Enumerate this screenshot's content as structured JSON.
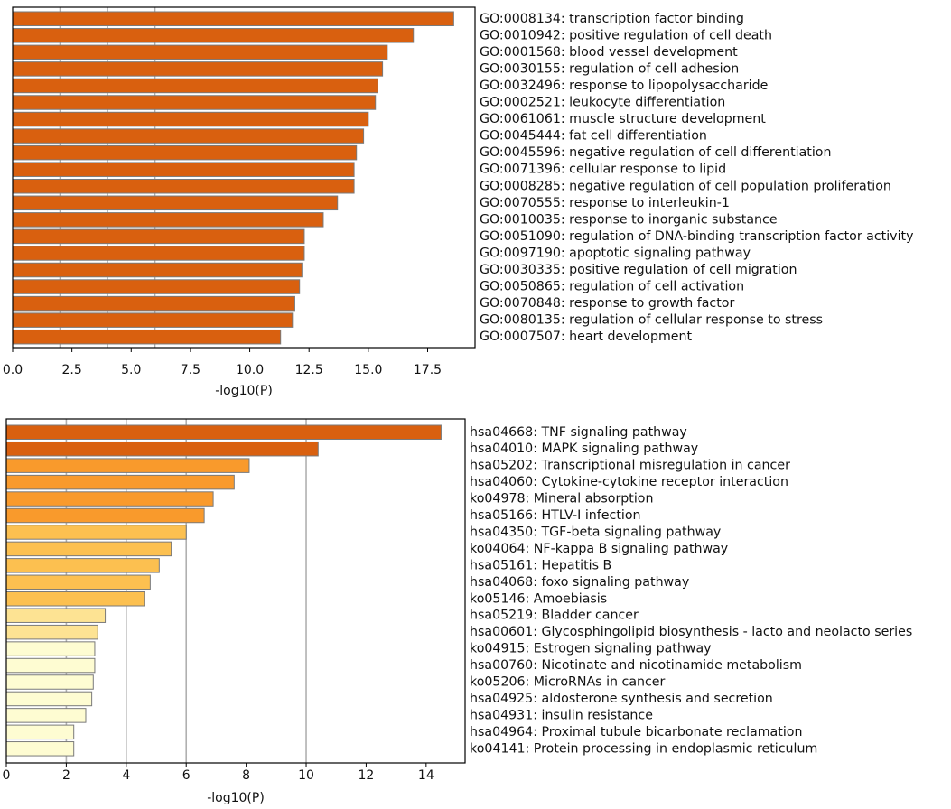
{
  "chart_data": [
    {
      "type": "bar",
      "orientation": "horizontal",
      "title": "",
      "xlabel": "-log10(P)",
      "ylabel": "",
      "xlim": [
        0,
        19.5
      ],
      "xticks": [
        0,
        2.5,
        5,
        7.5,
        10,
        12.5,
        15,
        17.5
      ],
      "xtick_labels": [
        "0.0",
        "2.5",
        "5.0",
        "7.5",
        "10.0",
        "12.5",
        "15.0",
        "17.5"
      ],
      "grid": "vertical",
      "gridlines": [
        2,
        4,
        6
      ],
      "categories": [
        "GO:0008134: transcription factor binding",
        "GO:0010942: positive regulation of cell death",
        "GO:0001568: blood vessel development",
        "GO:0030155: regulation of cell adhesion",
        "GO:0032496: response to lipopolysaccharide",
        "GO:0002521: leukocyte differentiation",
        "GO:0061061: muscle structure development",
        "GO:0045444: fat cell differentiation",
        "GO:0045596: negative regulation of cell differentiation",
        "GO:0071396: cellular response to lipid",
        "GO:0008285: negative regulation of cell population proliferation",
        "GO:0070555: response to interleukin-1",
        "GO:0010035: response to inorganic substance",
        "GO:0051090: regulation of DNA-binding transcription factor activity",
        "GO:0097190: apoptotic signaling pathway",
        "GO:0030335: positive regulation of cell migration",
        "GO:0050865: regulation of cell activation",
        "GO:0070848: response to growth factor",
        "GO:0080135: regulation of cellular response to stress",
        "GO:0007507: heart development"
      ],
      "values": [
        18.6,
        16.9,
        15.8,
        15.6,
        15.4,
        15.3,
        15.0,
        14.8,
        14.5,
        14.4,
        14.4,
        13.7,
        13.1,
        12.3,
        12.3,
        12.2,
        12.1,
        11.9,
        11.8,
        11.3
      ],
      "colors": [
        "#d9600f",
        "#d9600f",
        "#d9600f",
        "#d9600f",
        "#d9600f",
        "#d9600f",
        "#d9600f",
        "#d9600f",
        "#d9600f",
        "#d9600f",
        "#d9600f",
        "#d9600f",
        "#d9600f",
        "#d9600f",
        "#d9600f",
        "#d9600f",
        "#d9600f",
        "#d9600f",
        "#d9600f",
        "#d9600f"
      ]
    },
    {
      "type": "bar",
      "orientation": "horizontal",
      "title": "",
      "xlabel": "-log10(P)",
      "ylabel": "",
      "xlim": [
        0,
        15.3
      ],
      "xticks": [
        0,
        2,
        4,
        6,
        8,
        10,
        12,
        14
      ],
      "xtick_labels": [
        "0",
        "2",
        "4",
        "6",
        "8",
        "10",
        "12",
        "14"
      ],
      "grid": "vertical",
      "gridlines": [
        2,
        4,
        6,
        10
      ],
      "categories": [
        "hsa04668: TNF signaling pathway",
        "hsa04010: MAPK signaling pathway",
        "hsa05202: Transcriptional misregulation in cancer",
        "hsa04060: Cytokine-cytokine receptor interaction",
        "ko04978: Mineral absorption",
        "hsa05166: HTLV-I infection",
        "hsa04350: TGF-beta signaling pathway",
        "ko04064: NF-kappa B signaling pathway",
        "hsa05161: Hepatitis B",
        "hsa04068: foxo signaling pathway",
        "ko05146: Amoebiasis",
        "hsa05219: Bladder cancer",
        "hsa00601: Glycosphingolipid biosynthesis - lacto and neolacto series",
        "ko04915: Estrogen signaling pathway",
        "hsa00760: Nicotinate and nicotinamide metabolism",
        "ko05206: MicroRNAs in cancer",
        "hsa04925: aldosterone synthesis and secretion",
        "hsa04931: insulin resistance",
        "hsa04964: Proximal tubule bicarbonate reclamation",
        "ko04141: Protein processing in endoplasmic reticulum"
      ],
      "values": [
        14.5,
        10.4,
        8.1,
        7.6,
        6.9,
        6.6,
        6.0,
        5.5,
        5.1,
        4.8,
        4.6,
        3.3,
        3.05,
        2.95,
        2.95,
        2.9,
        2.85,
        2.65,
        2.25,
        2.25
      ],
      "colors": [
        "#d9600f",
        "#d9600f",
        "#f99a2c",
        "#f99a2c",
        "#f99a2c",
        "#f99a2c",
        "#fcc050",
        "#fcc050",
        "#fcc050",
        "#fcc050",
        "#fcc050",
        "#fde393",
        "#fde393",
        "#fefcd2",
        "#fefcd2",
        "#fefcd2",
        "#fefcd2",
        "#fefcd2",
        "#fefcd2",
        "#fefcd2"
      ]
    }
  ]
}
